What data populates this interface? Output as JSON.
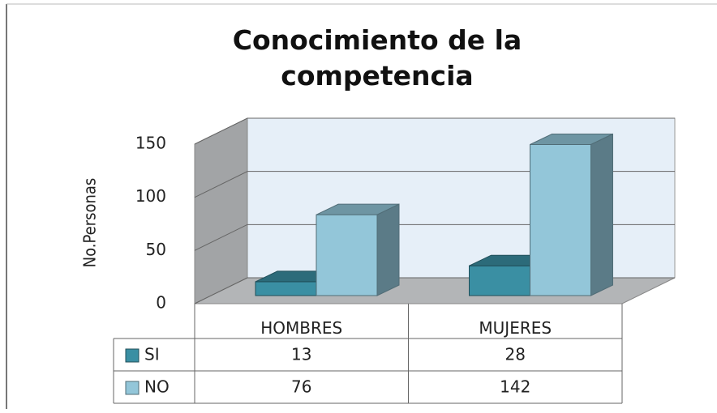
{
  "chart_data": {
    "type": "bar3d",
    "title": "Conocimiento de la competencia",
    "y_label": "No.Personas",
    "categories": [
      "HOMBRES",
      "MUJERES"
    ],
    "series": [
      {
        "name": "SI",
        "color": "#3a8fa3",
        "values": [
          13,
          28
        ]
      },
      {
        "name": "NO",
        "color": "#93c6d9",
        "values": [
          76,
          142
        ]
      }
    ],
    "ylim": [
      0,
      150
    ],
    "yticks": [
      0,
      50,
      100,
      150
    ],
    "grid": true
  }
}
